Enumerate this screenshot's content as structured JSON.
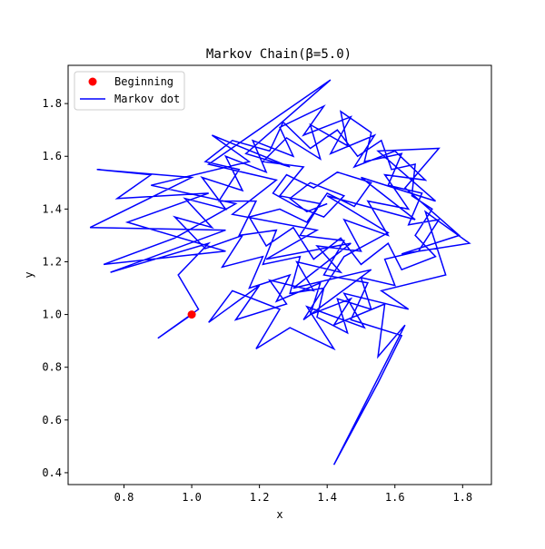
{
  "chart_data": {
    "type": "line",
    "title": "Markov Chain(β=5.0)",
    "xlabel": "x",
    "ylabel": "y",
    "xlim": [
      0.635,
      1.885
    ],
    "ylim": [
      0.355,
      1.945
    ],
    "xticks": [
      "0.8",
      "1.0",
      "1.2",
      "1.4",
      "1.6",
      "1.8"
    ],
    "yticks": [
      "0.4",
      "0.6",
      "0.8",
      "1.0",
      "1.2",
      "1.4",
      "1.6",
      "1.8"
    ],
    "legend": {
      "placement": "top-left",
      "entries": [
        "Beginning",
        "Markov dot"
      ]
    },
    "grid": false,
    "colors": {
      "start_point": "#ff0000",
      "path_line": "#0000ff"
    },
    "series": [
      {
        "name": "Beginning",
        "kind": "scatter",
        "points": [
          [
            1.0,
            1.0
          ]
        ]
      },
      {
        "name": "Markov dot",
        "kind": "line",
        "points": [
          [
            1.0,
            1.0
          ],
          [
            0.9,
            0.91
          ],
          [
            1.02,
            1.02
          ],
          [
            0.96,
            1.15
          ],
          [
            1.05,
            1.27
          ],
          [
            0.76,
            1.16
          ],
          [
            1.1,
            1.32
          ],
          [
            0.7,
            1.33
          ],
          [
            1.0,
            1.52
          ],
          [
            0.72,
            1.55
          ],
          [
            0.88,
            1.53
          ],
          [
            0.78,
            1.44
          ],
          [
            1.05,
            1.46
          ],
          [
            0.81,
            1.35
          ],
          [
            1.1,
            1.24
          ],
          [
            0.74,
            1.19
          ],
          [
            0.95,
            1.29
          ],
          [
            1.13,
            1.42
          ],
          [
            0.88,
            1.49
          ],
          [
            1.17,
            1.58
          ],
          [
            1.06,
            1.68
          ],
          [
            1.29,
            1.56
          ],
          [
            1.16,
            1.61
          ],
          [
            1.41,
            1.89
          ],
          [
            1.05,
            1.57
          ],
          [
            1.25,
            1.51
          ],
          [
            1.12,
            1.38
          ],
          [
            1.37,
            1.32
          ],
          [
            1.22,
            1.21
          ],
          [
            1.47,
            1.27
          ],
          [
            1.3,
            1.1
          ],
          [
            1.53,
            1.17
          ],
          [
            1.33,
            0.98
          ],
          [
            1.45,
            1.22
          ],
          [
            1.58,
            1.31
          ],
          [
            1.4,
            1.45
          ],
          [
            1.66,
            1.36
          ],
          [
            1.5,
            1.52
          ],
          [
            1.72,
            1.43
          ],
          [
            1.55,
            1.62
          ],
          [
            1.73,
            1.63
          ],
          [
            1.63,
            1.48
          ],
          [
            1.79,
            1.3
          ],
          [
            1.62,
            1.23
          ],
          [
            1.82,
            1.27
          ],
          [
            1.69,
            1.39
          ],
          [
            1.75,
            1.15
          ],
          [
            1.56,
            1.09
          ],
          [
            1.64,
            1.02
          ],
          [
            1.45,
            1.08
          ],
          [
            1.51,
            0.95
          ],
          [
            1.34,
            1.03
          ],
          [
            1.42,
            0.87
          ],
          [
            1.29,
            0.95
          ],
          [
            1.19,
            0.87
          ],
          [
            1.26,
            1.02
          ],
          [
            1.12,
            1.09
          ],
          [
            1.05,
            0.97
          ],
          [
            1.2,
            1.11
          ],
          [
            1.13,
            0.98
          ],
          [
            1.28,
            1.04
          ],
          [
            1.23,
            1.13
          ],
          [
            1.36,
            1.09
          ],
          [
            1.31,
            1.2
          ],
          [
            1.44,
            1.16
          ],
          [
            1.37,
            1.26
          ],
          [
            1.5,
            1.24
          ],
          [
            1.45,
            1.36
          ],
          [
            1.58,
            1.3
          ],
          [
            1.52,
            1.43
          ],
          [
            1.64,
            1.4
          ],
          [
            1.57,
            1.53
          ],
          [
            1.69,
            1.51
          ],
          [
            1.6,
            1.62
          ],
          [
            1.48,
            1.56
          ],
          [
            1.54,
            1.68
          ],
          [
            1.41,
            1.61
          ],
          [
            1.47,
            1.75
          ],
          [
            1.33,
            1.68
          ],
          [
            1.39,
            1.79
          ],
          [
            1.26,
            1.71
          ],
          [
            1.3,
            1.6
          ],
          [
            1.18,
            1.66
          ],
          [
            1.22,
            1.54
          ],
          [
            1.1,
            1.6
          ],
          [
            1.15,
            1.47
          ],
          [
            1.03,
            1.52
          ],
          [
            1.1,
            1.4
          ],
          [
            0.98,
            1.44
          ],
          [
            1.06,
            1.33
          ],
          [
            0.95,
            1.37
          ],
          [
            1.04,
            1.25
          ],
          [
            1.15,
            1.3
          ],
          [
            1.09,
            1.18
          ],
          [
            1.21,
            1.22
          ],
          [
            1.17,
            1.1
          ],
          [
            1.29,
            1.15
          ],
          [
            1.25,
            1.05
          ],
          [
            1.38,
            1.12
          ],
          [
            1.35,
            1.0
          ],
          [
            1.47,
            1.06
          ],
          [
            1.42,
            0.96
          ],
          [
            1.57,
            1.04
          ],
          [
            1.55,
            0.84
          ],
          [
            1.63,
            0.96
          ],
          [
            1.42,
            0.43
          ],
          [
            1.55,
            0.74
          ],
          [
            1.62,
            0.92
          ],
          [
            1.47,
            0.98
          ],
          [
            1.52,
            1.12
          ],
          [
            1.39,
            1.15
          ],
          [
            1.45,
            1.28
          ],
          [
            1.32,
            1.3
          ],
          [
            1.38,
            1.42
          ],
          [
            1.26,
            1.45
          ],
          [
            1.33,
            1.56
          ],
          [
            1.21,
            1.58
          ],
          [
            1.28,
            1.67
          ],
          [
            1.38,
            1.59
          ],
          [
            1.35,
            1.72
          ],
          [
            1.46,
            1.64
          ],
          [
            1.44,
            1.77
          ],
          [
            1.53,
            1.69
          ],
          [
            1.51,
            1.58
          ],
          [
            1.62,
            1.61
          ],
          [
            1.58,
            1.49
          ],
          [
            1.68,
            1.46
          ],
          [
            1.64,
            1.34
          ],
          [
            1.73,
            1.36
          ],
          [
            1.67,
            1.24
          ],
          [
            1.57,
            1.21
          ],
          [
            1.6,
            1.11
          ],
          [
            1.5,
            1.14
          ],
          [
            1.53,
            1.02
          ],
          [
            1.43,
            1.06
          ],
          [
            1.46,
            0.93
          ],
          [
            1.37,
            0.99
          ],
          [
            1.39,
            1.1
          ],
          [
            1.29,
            1.08
          ],
          [
            1.32,
            1.22
          ],
          [
            1.21,
            1.19
          ],
          [
            1.25,
            1.32
          ],
          [
            1.14,
            1.3
          ],
          [
            1.19,
            1.43
          ],
          [
            1.08,
            1.43
          ],
          [
            1.14,
            1.55
          ],
          [
            1.04,
            1.58
          ],
          [
            1.12,
            1.66
          ],
          [
            1.23,
            1.62
          ],
          [
            1.27,
            1.73
          ],
          [
            1.35,
            1.63
          ],
          [
            1.43,
            1.7
          ],
          [
            1.49,
            1.6
          ],
          [
            1.56,
            1.66
          ],
          [
            1.59,
            1.55
          ],
          [
            1.66,
            1.57
          ],
          [
            1.65,
            1.45
          ],
          [
            1.71,
            1.4
          ],
          [
            1.66,
            1.3
          ],
          [
            1.72,
            1.22
          ],
          [
            1.62,
            1.17
          ],
          [
            1.58,
            1.27
          ],
          [
            1.5,
            1.19
          ],
          [
            1.44,
            1.29
          ],
          [
            1.36,
            1.21
          ],
          [
            1.3,
            1.33
          ],
          [
            1.22,
            1.26
          ],
          [
            1.17,
            1.37
          ],
          [
            1.26,
            1.4
          ],
          [
            1.34,
            1.35
          ],
          [
            1.4,
            1.46
          ],
          [
            1.48,
            1.41
          ],
          [
            1.53,
            1.5
          ],
          [
            1.43,
            1.54
          ],
          [
            1.36,
            1.48
          ],
          [
            1.28,
            1.53
          ],
          [
            1.24,
            1.46
          ],
          [
            1.31,
            1.41
          ],
          [
            1.39,
            1.37
          ],
          [
            1.45,
            1.45
          ],
          [
            1.35,
            1.5
          ],
          [
            1.29,
            1.44
          ],
          [
            1.34,
            1.39
          ],
          [
            1.4,
            1.42
          ]
        ]
      }
    ]
  }
}
